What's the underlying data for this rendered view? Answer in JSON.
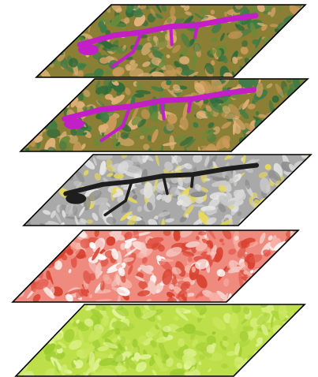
{
  "layers": [
    {
      "name": "land-cover-classification-top",
      "palette": {
        "base": "#8a7f34",
        "accents": [
          "#2f6b3a",
          "#3f7c46",
          "#e0b178",
          "#c99a5a",
          "#6a8a3a"
        ],
        "water": "#c21fc8"
      }
    },
    {
      "name": "land-cover-classification-second",
      "palette": {
        "base": "#8a7f34",
        "accents": [
          "#2f6b3a",
          "#3f7c46",
          "#e0b178",
          "#c99a5a",
          "#6a8a3a"
        ],
        "water": "#c21fc8"
      }
    },
    {
      "name": "grayscale-satellite-band",
      "palette": {
        "base": "#a9a9a9",
        "accents": [
          "#d8d8d8",
          "#8c8c8c",
          "#e6e6e6",
          "#c8c8c8",
          "#e8d95a"
        ],
        "water": "#1e1e1e"
      }
    },
    {
      "name": "red-intensity-layer",
      "palette": {
        "base": "#ee8a7e",
        "accents": [
          "#e2574a",
          "#f7b1a7",
          "#ffffff",
          "#d8412f",
          "#f4c8c2"
        ],
        "water": "#d63a2a"
      }
    },
    {
      "name": "green-vegetation-layer",
      "palette": {
        "base": "#bde04a",
        "accents": [
          "#a8d13a",
          "#d6ee7a",
          "#9ccb30",
          "#c9e65c",
          "#e2f39a"
        ],
        "water": "#b2da44"
      }
    }
  ]
}
